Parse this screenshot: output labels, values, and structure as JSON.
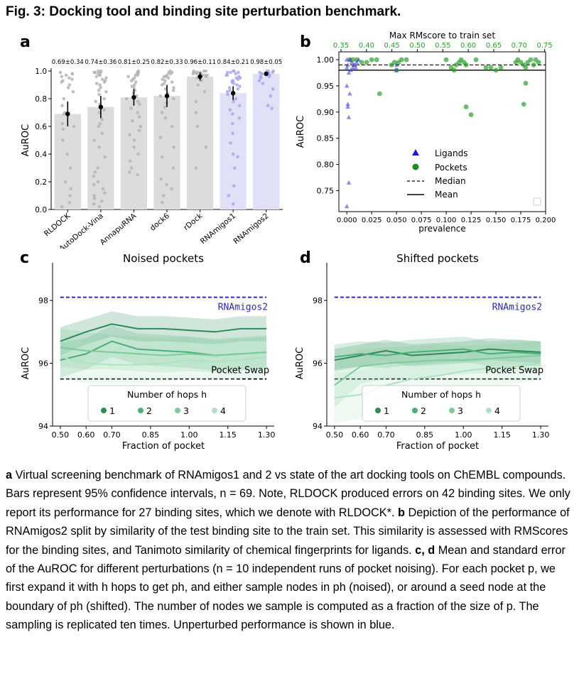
{
  "figure_title": "Fig. 3: Docking tool and binding site perturbation benchmark.",
  "panels": {
    "a": "a",
    "b": "b",
    "c": "c",
    "d": "d"
  },
  "chart_data": [
    {
      "panel": "a",
      "type": "bar",
      "ylabel": "AuROC",
      "ylim": [
        0,
        1.0
      ],
      "yticks": [
        "0.0",
        "0.2",
        "0.4",
        "0.6",
        "0.8",
        "1.0"
      ],
      "categories": [
        "RLDOCK",
        "AutoDock-Vina",
        "AnnapuRNA",
        "dock6",
        "rDock",
        "RNAmigos1",
        "RNAmigos2"
      ],
      "values": [
        0.69,
        0.74,
        0.81,
        0.82,
        0.96,
        0.84,
        0.98
      ],
      "value_labels": [
        "0.69±0.34",
        "0.74±0.36",
        "0.81±0.25",
        "0.82±0.33",
        "0.96±0.11",
        "0.84±0.21",
        "0.98±0.05"
      ],
      "ci_low": [
        0.6,
        0.66,
        0.75,
        0.74,
        0.93,
        0.79,
        0.97
      ],
      "ci_high": [
        0.78,
        0.82,
        0.87,
        0.9,
        0.99,
        0.89,
        0.99
      ],
      "bar_colors": [
        "#dcdcdc",
        "#dcdcdc",
        "#dcdcdc",
        "#dcdcdc",
        "#dcdcdc",
        "#e0e0f6",
        "#e0e0f6"
      ],
      "point_colors": [
        "#b5b5b5",
        "#b5b5b5",
        "#b5b5b5",
        "#b5b5b5",
        "#b5b5b5",
        "#a8a8ee",
        "#a8a8ee"
      ],
      "points": [
        [
          0.99,
          0.98,
          0.96,
          0.95,
          0.93,
          0.9,
          0.85,
          0.8,
          0.75,
          0.69,
          0.62,
          0.58,
          0.5,
          0.4,
          0.3,
          0.15,
          0.1,
          0.05,
          0.98,
          0.97,
          0.94,
          0.92,
          0.88,
          0.7,
          0.6,
          0.2,
          0.02
        ],
        [
          1.0,
          0.99,
          0.99,
          0.98,
          0.97,
          0.96,
          0.95,
          0.93,
          0.92,
          0.9,
          0.88,
          0.86,
          0.83,
          0.8,
          0.76,
          0.7,
          0.65,
          0.6,
          0.55,
          0.5,
          0.45,
          0.38,
          0.3,
          0.27,
          0.24,
          0.2,
          0.15,
          0.12,
          0.1,
          0.08,
          0.06,
          0.04,
          0.02,
          1.0,
          0.99,
          0.97,
          0.94,
          0.91,
          0.85,
          0.78,
          0.72,
          0.62,
          0.18
        ],
        [
          1.0,
          0.99,
          0.98,
          0.97,
          0.96,
          0.95,
          0.94,
          0.92,
          0.9,
          0.88,
          0.86,
          0.84,
          0.82,
          0.8,
          0.78,
          0.76,
          0.73,
          0.7,
          0.67,
          0.64,
          0.6,
          0.57,
          0.54,
          0.5,
          0.45,
          0.4,
          0.35,
          0.3,
          0.27,
          0.25,
          0.99,
          0.97,
          0.93,
          0.89
        ],
        [
          1.0,
          0.99,
          0.98,
          0.97,
          0.96,
          0.95,
          0.94,
          0.93,
          0.92,
          0.9,
          0.88,
          0.86,
          0.84,
          0.82,
          0.8,
          0.77,
          0.74,
          0.7,
          0.66,
          0.6,
          0.52,
          0.45,
          0.38,
          0.3,
          0.22,
          0.18,
          0.15,
          0.1,
          0.05,
          0.99,
          0.96,
          0.91,
          0.87
        ],
        [
          1.0,
          1.0,
          0.99,
          0.99,
          0.99,
          0.98,
          0.98,
          0.97,
          0.97,
          0.96,
          0.96,
          0.95,
          0.93,
          0.9,
          0.85,
          0.78,
          0.7,
          0.6,
          0.45,
          0.3,
          1.0,
          0.99,
          0.98,
          0.97
        ],
        [
          1.0,
          1.0,
          0.99,
          0.99,
          0.98,
          0.97,
          0.96,
          0.95,
          0.94,
          0.93,
          0.92,
          0.91,
          0.9,
          0.89,
          0.88,
          0.87,
          0.86,
          0.85,
          0.83,
          0.8,
          0.78,
          0.75,
          0.72,
          0.69,
          0.66,
          0.62,
          0.55,
          0.48,
          0.4,
          0.38,
          0.3,
          0.17,
          0.1,
          0.04,
          0.99,
          0.97,
          0.95,
          0.93
        ],
        [
          1.0,
          1.0,
          1.0,
          0.99,
          0.99,
          0.99,
          0.98,
          0.98,
          0.97,
          0.96,
          0.95,
          0.93,
          0.91,
          0.87,
          0.82,
          0.75,
          0.73,
          0.98,
          0.96
        ]
      ]
    },
    {
      "panel": "b",
      "type": "scatter",
      "xlabel": "prevalence",
      "ylabel": "AuROC",
      "top_xlabel": "Max RMscore to train set",
      "xlim": [
        -0.008,
        0.2
      ],
      "ylim": [
        0.71,
        1.015
      ],
      "xticks": [
        "0.000",
        "0.025",
        "0.050",
        "0.075",
        "0.100",
        "0.125",
        "0.150",
        "0.175",
        "0.200"
      ],
      "yticks": [
        "0.75",
        "0.80",
        "0.85",
        "0.90",
        "0.95",
        "1.00"
      ],
      "top_xticks": [
        "0.35",
        "0.40",
        "0.45",
        "0.50",
        "0.55",
        "0.60",
        "0.65",
        "0.70",
        "0.75"
      ],
      "top_tick_color": "#2ca02c",
      "median": 0.99,
      "mean": 0.98,
      "legend": [
        "Ligands",
        "Pockets",
        "Median",
        "Mean"
      ],
      "series": [
        {
          "name": "Ligands",
          "color": "#3a3ae6",
          "x": [
            0.0,
            0.001,
            0.002,
            0.003,
            0.0,
            0.001,
            0.002,
            0.0,
            0.001,
            0.0,
            0.003,
            0.005,
            0.006,
            0.008,
            0.01,
            0.012,
            0.004,
            0.007,
            0.009,
            0.002,
            0.05,
            0.05
          ],
          "y": [
            0.72,
            0.91,
            0.89,
            0.935,
            0.95,
            0.915,
            0.765,
            0.985,
            0.99,
            1.0,
            1.0,
            0.995,
            0.985,
            0.99,
            0.995,
            1.0,
            0.98,
            0.99,
            0.985,
            0.975,
            0.99,
            0.98
          ]
        },
        {
          "name": "Pockets",
          "color": "#2ca02c",
          "x": [
            0.003,
            0.006,
            0.01,
            0.015,
            0.02,
            0.025,
            0.03,
            0.045,
            0.048,
            0.05,
            0.052,
            0.055,
            0.06,
            0.1,
            0.105,
            0.108,
            0.11,
            0.113,
            0.115,
            0.118,
            0.12,
            0.13,
            0.14,
            0.145,
            0.15,
            0.155,
            0.17,
            0.172,
            0.175,
            0.178,
            0.18,
            0.182,
            0.185,
            0.188,
            0.19,
            0.193,
            0.18,
            0.178,
            0.125,
            0.12,
            0.033
          ],
          "y": [
            1.0,
            1.0,
            1.0,
            0.995,
            0.995,
            1.0,
            1.0,
            0.99,
            0.995,
            0.98,
            0.995,
            1.0,
            1.0,
            1.0,
            0.985,
            0.98,
            0.99,
            0.995,
            1.0,
            0.995,
            0.99,
            1.0,
            0.985,
            0.985,
            0.98,
            0.985,
            0.995,
            1.0,
            0.995,
            0.99,
            0.985,
            0.995,
            1.0,
            0.99,
            1.0,
            0.995,
            0.955,
            0.915,
            0.895,
            0.91,
            0.935
          ]
        }
      ]
    },
    {
      "panel": "c",
      "type": "line",
      "title": "Noised pockets",
      "xlabel": "Fraction of pocket",
      "ylabel": "AuROC",
      "x": [
        0.5,
        0.6,
        0.7,
        0.8,
        0.9,
        1.0,
        1.1,
        1.2,
        1.3
      ],
      "xticks": [
        "0.50",
        "0.60",
        "0.70",
        "0.85",
        "1.00",
        "1.15",
        "1.30"
      ],
      "xtick_values": [
        0.5,
        0.6,
        0.7,
        0.85,
        1.0,
        1.15,
        1.3
      ],
      "xlim": [
        0.47,
        1.33
      ],
      "ylim": [
        94,
        99.2
      ],
      "yticks": [
        "94",
        "96",
        "98"
      ],
      "rnamigos2": 98.1,
      "pocket_swap": 95.5,
      "rnamigos2_label": "RNAmigos2",
      "pocket_swap_label": "Pocket Swap",
      "legend_title": "Number of hops h",
      "series": [
        {
          "name": "1",
          "color": "#2e8b57",
          "values": [
            96.7,
            97.0,
            97.25,
            97.1,
            97.1,
            97.05,
            97.0,
            97.1,
            97.1
          ],
          "err": [
            0.45,
            0.4,
            0.4,
            0.4,
            0.4,
            0.4,
            0.4,
            0.4,
            0.4
          ]
        },
        {
          "name": "2",
          "color": "#4caf7a",
          "values": [
            96.1,
            96.3,
            96.7,
            96.45,
            96.4,
            96.35,
            96.25,
            96.3,
            96.35
          ],
          "err": [
            0.55,
            0.5,
            0.5,
            0.5,
            0.5,
            0.5,
            0.5,
            0.5,
            0.5
          ]
        },
        {
          "name": "3",
          "color": "#7ccc9a",
          "values": [
            96.5,
            96.4,
            96.35,
            96.3,
            96.25,
            96.3,
            96.25,
            96.3,
            96.35
          ],
          "err": [
            0.6,
            0.6,
            0.55,
            0.55,
            0.55,
            0.55,
            0.55,
            0.55,
            0.55
          ]
        },
        {
          "name": "4",
          "color": "#b0e2c2",
          "values": [
            96.2,
            96.0,
            95.95,
            95.95,
            96.0,
            96.1,
            96.05,
            96.1,
            96.2
          ],
          "err": [
            0.7,
            0.65,
            0.6,
            0.6,
            0.6,
            0.6,
            0.6,
            0.6,
            0.6
          ]
        }
      ]
    },
    {
      "panel": "d",
      "type": "line",
      "title": "Shifted pockets",
      "xlabel": "Fraction of pocket",
      "ylabel": "AuROC",
      "x": [
        0.5,
        0.6,
        0.7,
        0.8,
        0.9,
        1.0,
        1.1,
        1.2,
        1.3
      ],
      "xticks": [
        "0.50",
        "0.60",
        "0.70",
        "0.85",
        "1.00",
        "1.15",
        "1.30"
      ],
      "xtick_values": [
        0.5,
        0.6,
        0.7,
        0.85,
        1.0,
        1.15,
        1.3
      ],
      "xlim": [
        0.47,
        1.33
      ],
      "ylim": [
        94,
        99.2
      ],
      "yticks": [
        "94",
        "96",
        "98"
      ],
      "rnamigos2": 98.1,
      "pocket_swap": 95.5,
      "rnamigos2_label": "RNAmigos2",
      "pocket_swap_label": "Pocket Swap",
      "legend_title": "Number of hops h",
      "series": [
        {
          "name": "1",
          "color": "#2e8b57",
          "values": [
            96.1,
            96.25,
            96.4,
            96.25,
            96.3,
            96.35,
            96.45,
            96.4,
            96.35
          ],
          "err": [
            0.35,
            0.35,
            0.35,
            0.35,
            0.35,
            0.35,
            0.35,
            0.35,
            0.35
          ]
        },
        {
          "name": "2",
          "color": "#4caf7a",
          "values": [
            96.2,
            96.3,
            96.25,
            96.35,
            96.4,
            96.45,
            96.3,
            96.35,
            96.3
          ],
          "err": [
            0.4,
            0.4,
            0.4,
            0.4,
            0.4,
            0.4,
            0.4,
            0.4,
            0.4
          ]
        },
        {
          "name": "3",
          "color": "#7ccc9a",
          "values": [
            95.3,
            95.9,
            96.0,
            96.05,
            96.1,
            96.1,
            96.15,
            96.2,
            96.25
          ],
          "err": [
            0.7,
            0.55,
            0.5,
            0.5,
            0.5,
            0.45,
            0.45,
            0.45,
            0.45
          ]
        },
        {
          "name": "4",
          "color": "#b0e2c2",
          "values": [
            94.9,
            95.0,
            95.3,
            95.5,
            95.6,
            95.75,
            95.85,
            95.9,
            96.0
          ],
          "err": [
            0.8,
            0.75,
            0.7,
            0.65,
            0.6,
            0.6,
            0.55,
            0.55,
            0.55
          ]
        }
      ]
    }
  ],
  "caption": {
    "a_letter": "a",
    "a_text": " Virtual screening benchmark of RNAmigos1 and 2 vs state of the art docking tools on ChEMBL compounds. Bars represent 95% confidence intervals, n = 69. Note, RLDOCK produced errors on 42 binding sites. We only report its performance for 27 binding sites, which we denote with RLDOCK*.",
    "b_letter": "b",
    "b_text": " Depiction of the performance of RNAmigos2 split by similarity of the test binding site to the train set. This similarity is assessed with RMScores for the binding sites, and Tanimoto similarity of chemical fingerprints for ligands.",
    "cd_letters": "c, d",
    "cd_text": " Mean and standard error of the AuROC for different perturbations (n = 10 independent runs of pocket noising). For each pocket p, we first expand it with h hops to get ph, and either sample nodes in ph (noised), or around a seed node at the boundary of ph (shifted). The number of nodes we sample is computed as a fraction of the size of p. The sampling is replicated ten times. Unperturbed performance is shown in blue."
  }
}
